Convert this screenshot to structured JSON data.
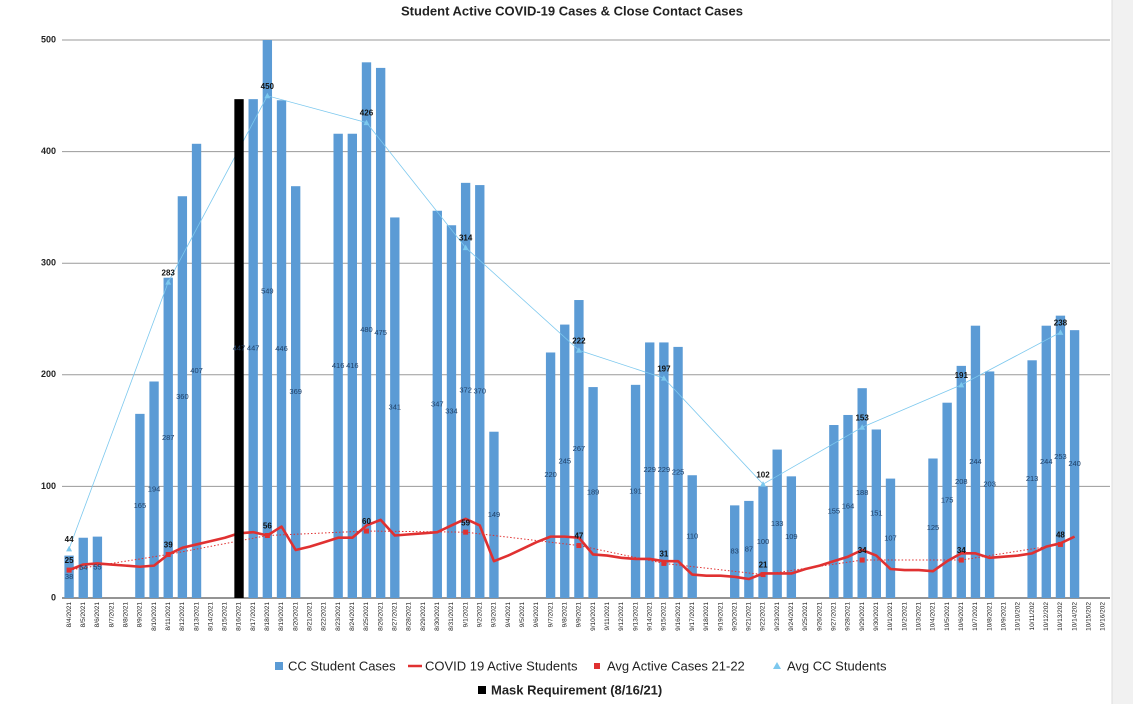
{
  "chart_data": {
    "type": "bar",
    "title": "Student Active COVID-19 Cases & Close Contact Cases",
    "categories": [
      "8/4/2021",
      "8/5/2021",
      "8/6/2021",
      "8/7/2021",
      "8/8/2021",
      "8/9/2021",
      "8/10/2021",
      "8/11/2021",
      "8/12/2021",
      "8/13/2021",
      "8/14/2021",
      "8/15/2021",
      "8/16/2021",
      "8/17/2021",
      "8/18/2021",
      "8/19/2021",
      "8/20/2021",
      "8/21/2021",
      "8/22/2021",
      "8/23/2021",
      "8/24/2021",
      "8/25/2021",
      "8/26/2021",
      "8/27/2021",
      "8/28/2021",
      "8/29/2021",
      "8/30/2021",
      "8/31/2021",
      "9/1/2021",
      "9/2/2021",
      "9/3/2021",
      "9/4/2021",
      "9/5/2021",
      "9/6/2021",
      "9/7/2021",
      "9/8/2021",
      "9/9/2021",
      "9/10/2021",
      "9/11/2021",
      "9/12/2021",
      "9/13/2021",
      "9/14/2021",
      "9/15/2021",
      "9/16/2021",
      "9/17/2021",
      "9/18/2021",
      "9/19/2021",
      "9/20/2021",
      "9/21/2021",
      "9/22/2021",
      "9/23/2021",
      "9/24/2021",
      "9/25/2021",
      "9/26/2021",
      "9/27/2021",
      "9/28/2021",
      "9/29/2021",
      "9/30/2021",
      "10/1/2021",
      "10/2/2021",
      "10/3/2021",
      "10/4/2021",
      "10/5/2021",
      "10/6/2021",
      "10/7/2021",
      "10/8/2021",
      "10/9/2021",
      "10/10/202",
      "10/11/202",
      "10/12/202",
      "10/13/202",
      "10/14/202",
      "10/15/202",
      "10/16/202"
    ],
    "series": [
      {
        "name": "CC Student Cases",
        "kind": "bar",
        "color": "#5b9bd5",
        "values": [
          38,
          54,
          55,
          null,
          null,
          165,
          194,
          287,
          360,
          407,
          null,
          null,
          null,
          447,
          549,
          446,
          369,
          null,
          null,
          416,
          416,
          480,
          475,
          341,
          null,
          null,
          347,
          334,
          372,
          370,
          149,
          null,
          null,
          null,
          220,
          245,
          267,
          189,
          null,
          null,
          191,
          229,
          229,
          225,
          110,
          null,
          null,
          83,
          87,
          100,
          133,
          109,
          null,
          null,
          155,
          164,
          188,
          151,
          107,
          null,
          null,
          125,
          175,
          208,
          244,
          203,
          null,
          null,
          213,
          244,
          253,
          240,
          null,
          null
        ]
      },
      {
        "name": "COVID 19 Active Students",
        "kind": "line",
        "color": "#e03131",
        "values": [
          25,
          30,
          31,
          30,
          29,
          28,
          29,
          39,
          45,
          48,
          51,
          54,
          58,
          59,
          56,
          64,
          43,
          46,
          50,
          54,
          54,
          65,
          70,
          56,
          57,
          58,
          59,
          65,
          71,
          65,
          33,
          38,
          44,
          50,
          55,
          55,
          54,
          39,
          38,
          36,
          35,
          35,
          33,
          33,
          21,
          20,
          20,
          19,
          17,
          22,
          22,
          22,
          26,
          29,
          33,
          37,
          43,
          38,
          26,
          25,
          25,
          24,
          33,
          40,
          40,
          36,
          37,
          38,
          40,
          46,
          49,
          55,
          null,
          null
        ]
      },
      {
        "name": "Avg Active Cases 21-22",
        "kind": "dotted",
        "color": "#e03131",
        "x": [
          "8/4/2021",
          "8/11/2021",
          "8/18/2021",
          "8/25/2021",
          "9/1/2021",
          "9/9/2021",
          "9/15/2021",
          "9/22/2021",
          "9/29/2021",
          "10/6/2021",
          "10/13/202"
        ],
        "values": [
          25,
          39,
          56,
          60,
          59,
          47,
          31,
          21,
          34,
          34,
          48
        ]
      },
      {
        "name": "Avg CC Students",
        "kind": "triangle",
        "color": "#7cc8ee",
        "x": [
          "8/4/2021",
          "8/11/2021",
          "8/18/2021",
          "8/25/2021",
          "9/1/2021",
          "9/9/2021",
          "9/15/2021",
          "9/22/2021",
          "9/29/2021",
          "10/6/2021",
          "10/13/202"
        ],
        "values": [
          44,
          283,
          450,
          426,
          314,
          222,
          197,
          102,
          153,
          191,
          238
        ]
      },
      {
        "name": "Mask Requirement (8/16/21)",
        "kind": "bar",
        "color": "#000000",
        "x": [
          "8/16/2021"
        ],
        "values": [
          447
        ]
      }
    ],
    "ylim": [
      0,
      500
    ],
    "yticks": [
      0,
      100,
      200,
      300,
      400,
      500
    ],
    "grid": true
  }
}
